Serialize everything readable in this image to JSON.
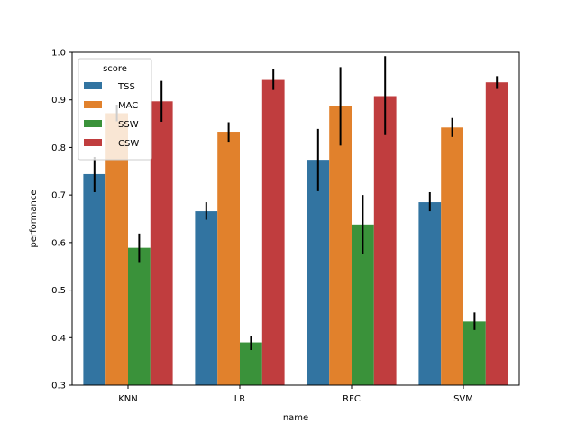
{
  "chart_data": {
    "type": "bar",
    "title": "",
    "xlabel": "name",
    "ylabel": "performance",
    "categories": [
      "KNN",
      "LR",
      "RFC",
      "SVM"
    ],
    "ylim": [
      0.3,
      1.0
    ],
    "yticks": [
      0.3,
      0.4,
      0.5,
      0.6,
      0.7,
      0.8,
      0.9,
      1.0
    ],
    "grid": false,
    "legend": {
      "title": "score",
      "placement": "top-left"
    },
    "series": [
      {
        "name": "TSS",
        "color": "#3274a1",
        "values": [
          0.744,
          0.666,
          0.774,
          0.685
        ],
        "err_low": [
          0.706,
          0.648,
          0.708,
          0.666
        ],
        "err_high": [
          0.78,
          0.685,
          0.839,
          0.706
        ]
      },
      {
        "name": "MAC",
        "color": "#e1812c",
        "values": [
          0.872,
          0.833,
          0.887,
          0.842
        ],
        "err_low": [
          0.855,
          0.812,
          0.804,
          0.822
        ],
        "err_high": [
          0.89,
          0.853,
          0.969,
          0.862
        ]
      },
      {
        "name": "SSW",
        "color": "#3a923a",
        "values": [
          0.589,
          0.39,
          0.638,
          0.434
        ],
        "err_low": [
          0.559,
          0.374,
          0.575,
          0.416
        ],
        "err_high": [
          0.619,
          0.404,
          0.7,
          0.453
        ]
      },
      {
        "name": "CSW",
        "color": "#c03d3e",
        "values": [
          0.897,
          0.942,
          0.908,
          0.937
        ],
        "err_low": [
          0.854,
          0.921,
          0.826,
          0.923
        ],
        "err_high": [
          0.94,
          0.964,
          0.992,
          0.95
        ]
      }
    ]
  }
}
